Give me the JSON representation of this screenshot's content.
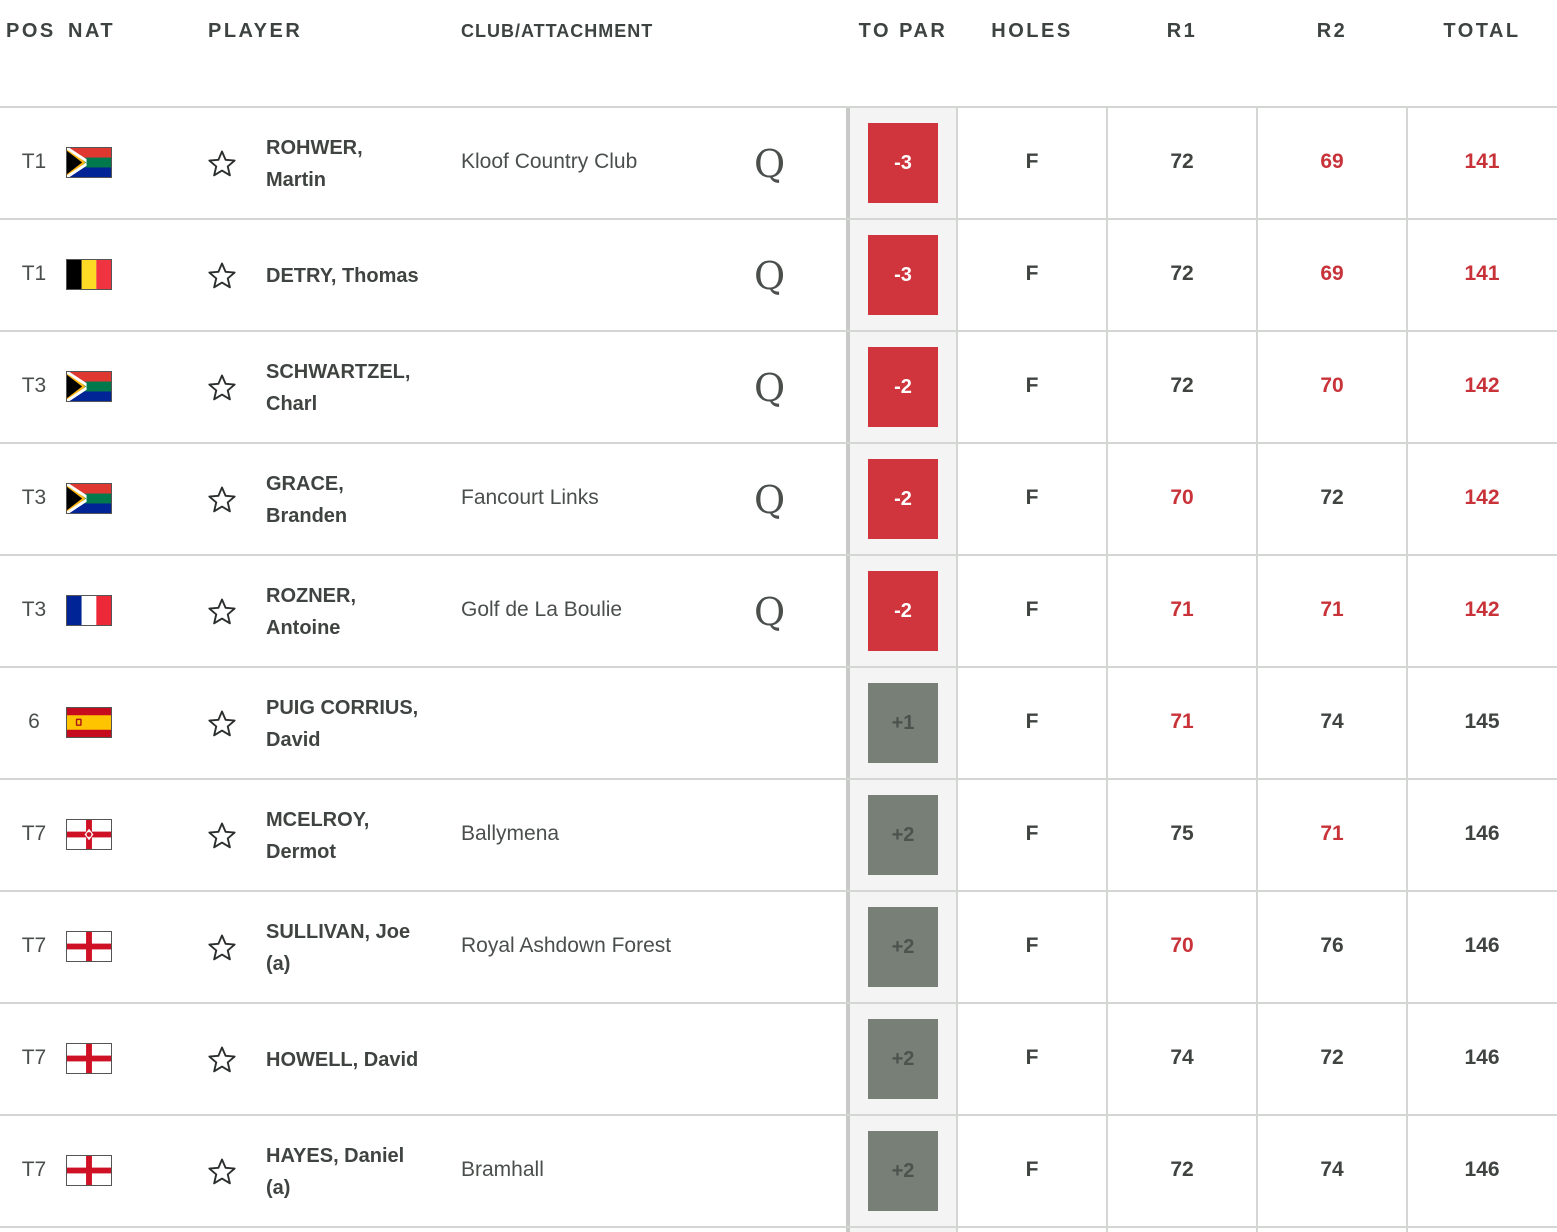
{
  "header": {
    "pos": "POS",
    "nat": "NAT",
    "player": "PLAYER",
    "club": "CLUB/ATTACHMENT",
    "to_par": "TO PAR",
    "holes": "HOLES",
    "r1": "R1",
    "r2": "R2",
    "total": "TOTAL"
  },
  "colors": {
    "under_par": "#d0343c",
    "over_par": "#787f77",
    "red_text": "#c8333a"
  },
  "rows": [
    {
      "pos": "T1",
      "nat": "South Africa",
      "flag": "za",
      "name_line1": "ROHWER,",
      "name_line2": "Martin",
      "club": "Kloof Country Club",
      "qualifier": "Q",
      "to_par": "-3",
      "holes": "F",
      "r1": "72",
      "r2": "69",
      "total": "141"
    },
    {
      "pos": "T1",
      "nat": "Belgium",
      "flag": "be",
      "name_line1": "DETRY, Thomas",
      "name_line2": "",
      "club": "",
      "qualifier": "Q",
      "to_par": "-3",
      "holes": "F",
      "r1": "72",
      "r2": "69",
      "total": "141"
    },
    {
      "pos": "T3",
      "nat": "South Africa",
      "flag": "za",
      "name_line1": "SCHWARTZEL,",
      "name_line2": "Charl",
      "club": "",
      "qualifier": "Q",
      "to_par": "-2",
      "holes": "F",
      "r1": "72",
      "r2": "70",
      "total": "142"
    },
    {
      "pos": "T3",
      "nat": "South Africa",
      "flag": "za",
      "name_line1": "GRACE,",
      "name_line2": "Branden",
      "club": "Fancourt Links",
      "qualifier": "Q",
      "to_par": "-2",
      "holes": "F",
      "r1": "70",
      "r2": "72",
      "total": "142"
    },
    {
      "pos": "T3",
      "nat": "France",
      "flag": "fr",
      "name_line1": "ROZNER,",
      "name_line2": "Antoine",
      "club": "Golf de La Boulie",
      "qualifier": "Q",
      "to_par": "-2",
      "holes": "F",
      "r1": "71",
      "r2": "71",
      "total": "142"
    },
    {
      "pos": "6",
      "nat": "Spain",
      "flag": "es",
      "name_line1": "PUIG CORRIUS,",
      "name_line2": "David",
      "club": "",
      "qualifier": "",
      "to_par": "+1",
      "holes": "F",
      "r1": "71",
      "r2": "74",
      "total": "145"
    },
    {
      "pos": "T7",
      "nat": "Northern Ireland",
      "flag": "nir",
      "name_line1": "MCELROY,",
      "name_line2": "Dermot",
      "club": "Ballymena",
      "qualifier": "",
      "to_par": "+2",
      "holes": "F",
      "r1": "75",
      "r2": "71",
      "total": "146"
    },
    {
      "pos": "T7",
      "nat": "England",
      "flag": "eng",
      "name_line1": "SULLIVAN, Joe",
      "name_line2": "(a)",
      "club": "Royal Ashdown Forest",
      "qualifier": "",
      "to_par": "+2",
      "holes": "F",
      "r1": "70",
      "r2": "76",
      "total": "146"
    },
    {
      "pos": "T7",
      "nat": "England",
      "flag": "eng",
      "name_line1": "HOWELL, David",
      "name_line2": "",
      "club": "",
      "qualifier": "",
      "to_par": "+2",
      "holes": "F",
      "r1": "74",
      "r2": "72",
      "total": "146"
    },
    {
      "pos": "T7",
      "nat": "England",
      "flag": "eng",
      "name_line1": "HAYES, Daniel",
      "name_line2": "(a)",
      "club": "Bramhall",
      "qualifier": "",
      "to_par": "+2",
      "holes": "F",
      "r1": "72",
      "r2": "74",
      "total": "146"
    }
  ]
}
